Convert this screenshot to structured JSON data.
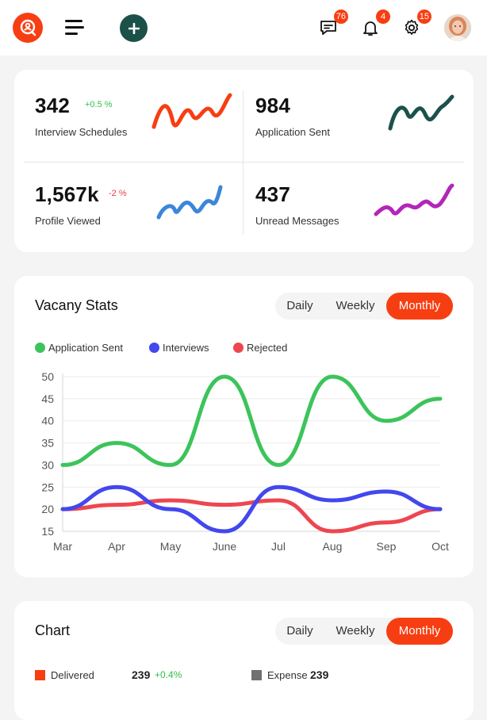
{
  "header": {
    "logo_icon": "search-user-icon",
    "messages_badge": "76",
    "notifications_badge": "4",
    "settings_badge": "15",
    "accent": "#f73e12",
    "add_color": "#1c514a"
  },
  "stats": [
    {
      "value": "342",
      "label": "Interview Schedules",
      "change": "+0.5 %",
      "change_color": "#2fbf4a",
      "spark_color": "#f73e12"
    },
    {
      "value": "984",
      "label": "Application Sent",
      "change": "",
      "spark_color": "#1c514a"
    },
    {
      "value": "1,567k",
      "label": "Profile Viewed",
      "change": "-2 %",
      "change_color": "#ef3b4a",
      "spark_color": "#3b86d9"
    },
    {
      "value": "437",
      "label": "Unread Messages",
      "change": "",
      "spark_color": "#b326b8"
    }
  ],
  "vacancy": {
    "title": "Vacany Stats",
    "tabs": [
      "Daily",
      "Weekly",
      "Monthly"
    ],
    "active_tab": "Monthly"
  },
  "chart_data": {
    "type": "line",
    "title": "",
    "categories": [
      "Mar",
      "Apr",
      "May",
      "June",
      "Jul",
      "Aug",
      "Sep",
      "Oct"
    ],
    "ylim": [
      15,
      50
    ],
    "yticks": [
      15,
      20,
      25,
      30,
      35,
      40,
      45,
      50
    ],
    "grid": true,
    "legend_placement": "top-left",
    "series": [
      {
        "name": "Application Sent",
        "color": "#3cc45b",
        "values": [
          30,
          35,
          30,
          50,
          30,
          50,
          40,
          45
        ]
      },
      {
        "name": "Interviews",
        "color": "#4247ee",
        "values": [
          20,
          25,
          20,
          15,
          25,
          22,
          24,
          20
        ]
      },
      {
        "name": "Rejected",
        "color": "#ee4650",
        "values": [
          20,
          21,
          22,
          21,
          22,
          15,
          17,
          20
        ]
      }
    ]
  },
  "chart_card": {
    "title": "Chart",
    "tabs": [
      "Daily",
      "Weekly",
      "Monthly"
    ],
    "active_tab": "Monthly",
    "legend": [
      {
        "label": "Delivered",
        "value": "239",
        "change": "+0.4%",
        "color": "#f73e12"
      },
      {
        "label": "Expense",
        "value": "239",
        "color": "#707070"
      }
    ]
  }
}
